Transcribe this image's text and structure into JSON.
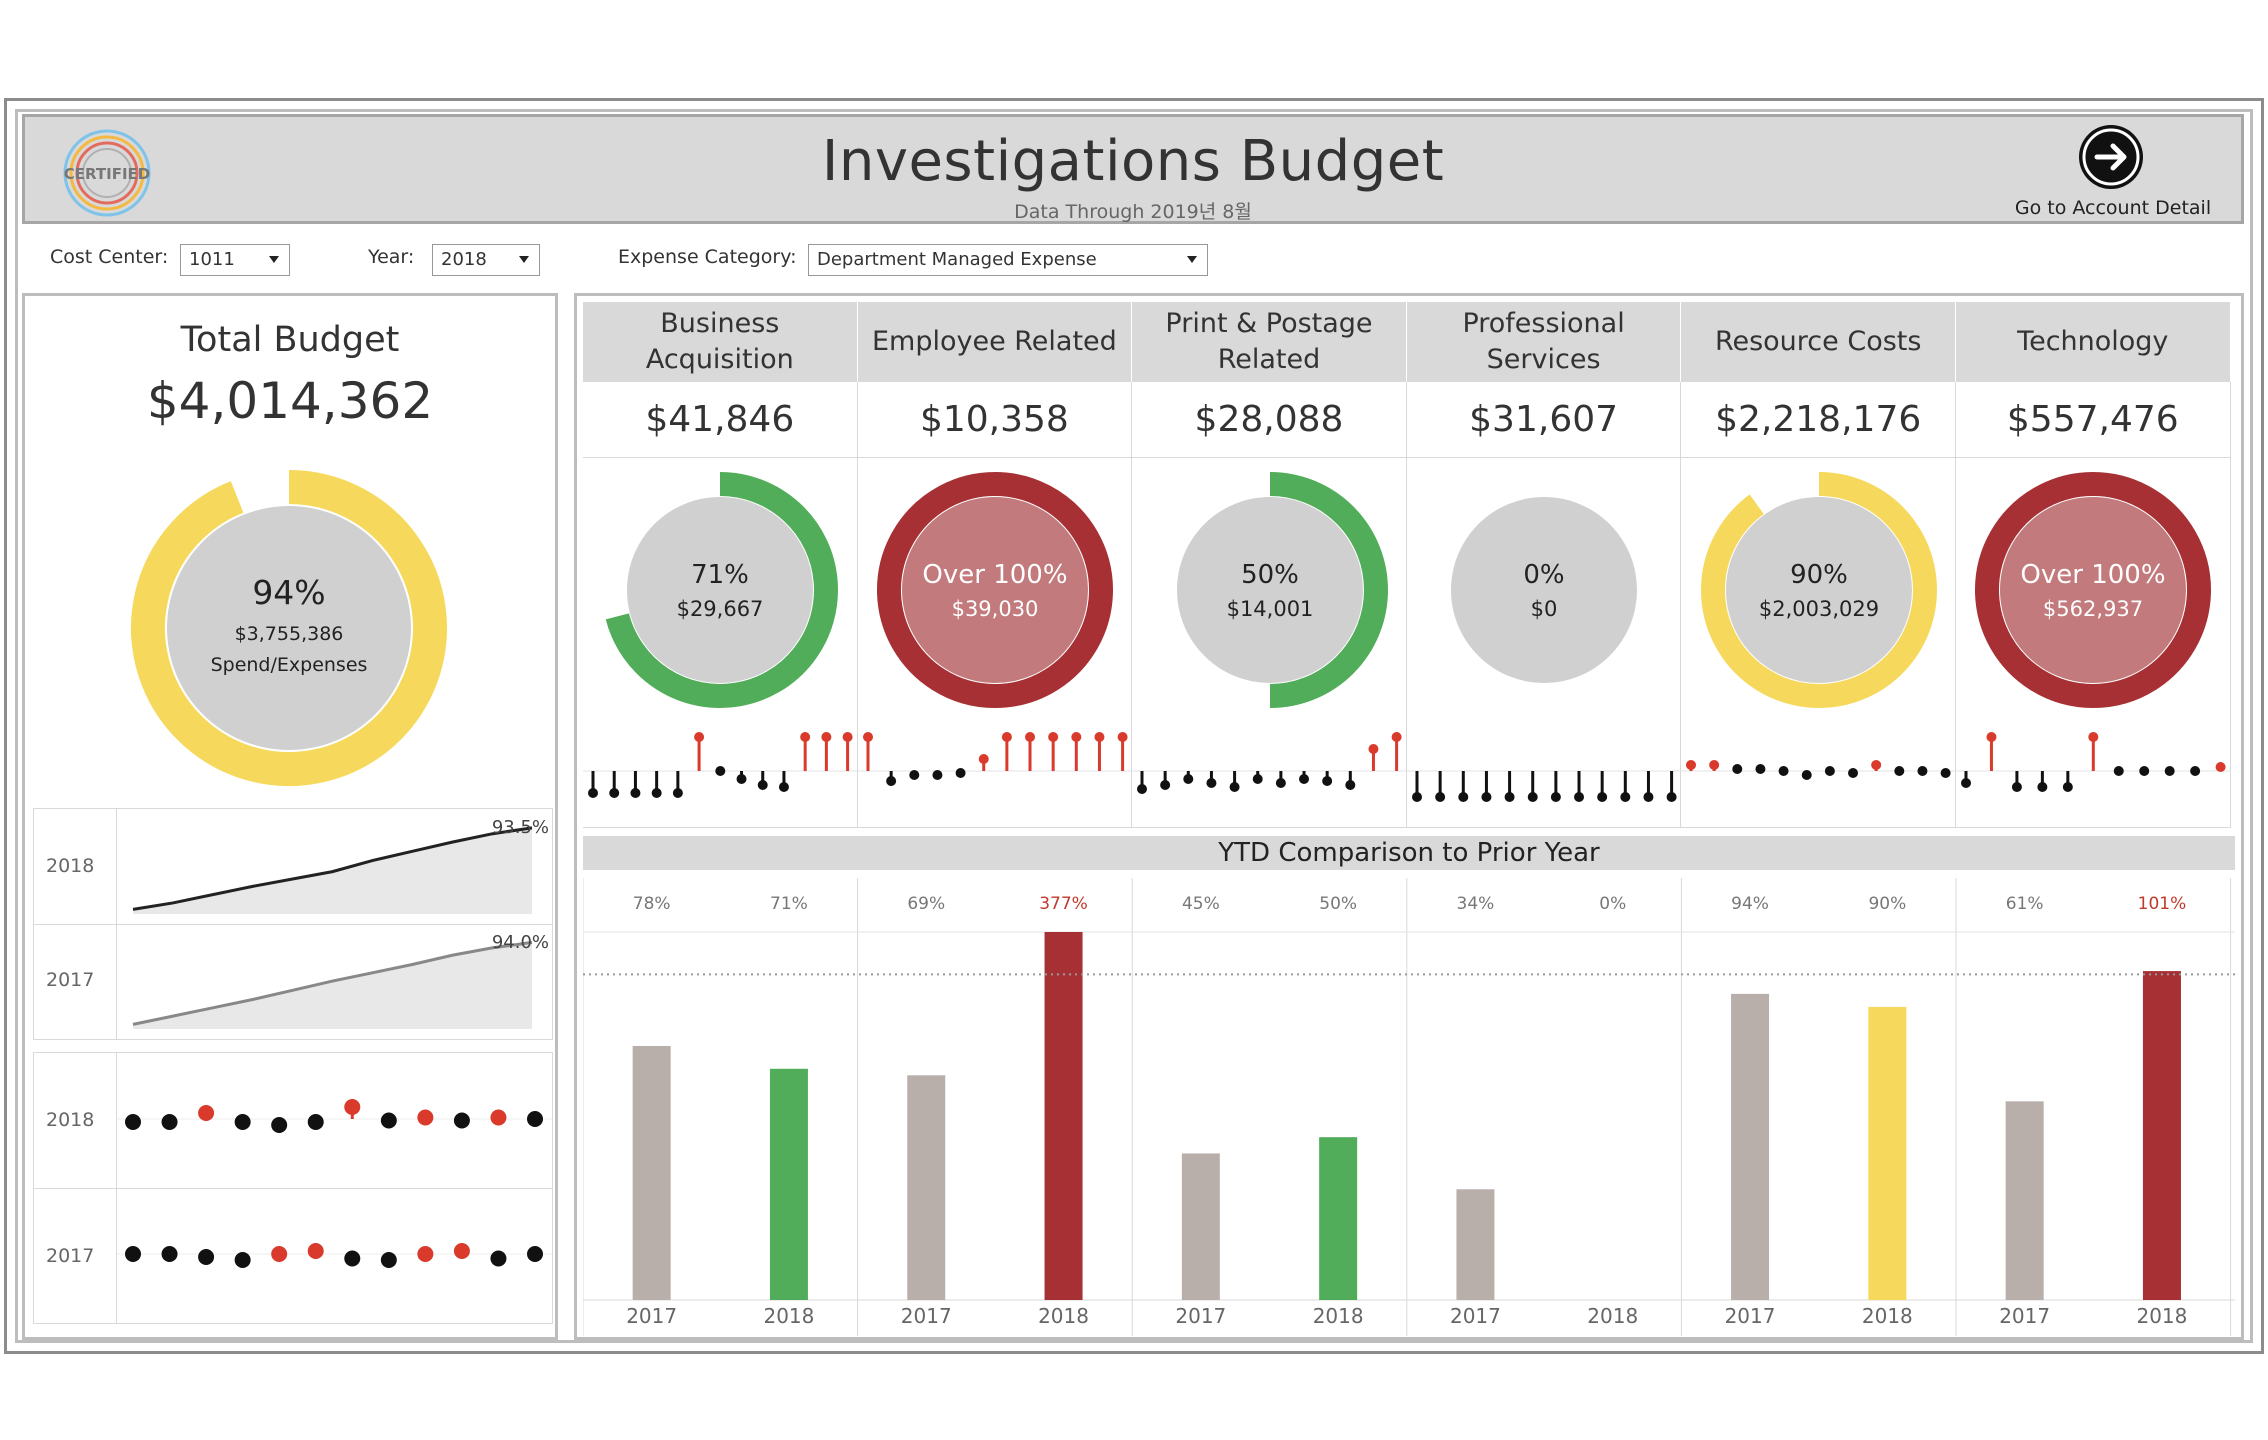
{
  "header": {
    "logo_text": "CERTIFIED",
    "title": "Investigations Budget",
    "subtitle": "Data Through 2019년 8월",
    "goto_label": "Go to Account Detail"
  },
  "filters": {
    "cost_center_label": "Cost Center:",
    "cost_center_value": "1011",
    "year_label": "Year:",
    "year_value": "2018",
    "expense_label": "Expense Category:",
    "expense_value": "Department Managed Expense"
  },
  "total": {
    "title": "Total Budget",
    "value": "$4,014,362",
    "percent": "94%",
    "spend": "$3,755,386",
    "spend_label": "Spend/Expenses",
    "fraction": 0.94,
    "color": "#f6d95c"
  },
  "cumulative": {
    "rows": [
      {
        "year": "2018",
        "end_label": "93.5%",
        "values": [
          0.05,
          0.12,
          0.21,
          0.3,
          0.38,
          0.46,
          0.58,
          0.68,
          0.78,
          0.87,
          0.935
        ]
      },
      {
        "year": "2017",
        "end_label": "94.0%",
        "values": [
          0.05,
          0.14,
          0.23,
          0.32,
          0.42,
          0.52,
          0.61,
          0.7,
          0.8,
          0.88,
          0.94
        ]
      }
    ]
  },
  "monthly_dots": {
    "rows": [
      {
        "year": "2018",
        "colors": [
          "#111111",
          "#111111",
          "#d93a2b",
          "#111111",
          "#111111",
          "#111111",
          "#d93a2b",
          "#111111",
          "#d93a2b",
          "#111111",
          "#d93a2b",
          "#111111"
        ],
        "offsets": [
          0.1,
          0.1,
          -0.2,
          0.1,
          0.2,
          0.1,
          -0.4,
          0.05,
          -0.05,
          0.05,
          -0.05,
          0.0
        ]
      },
      {
        "year": "2017",
        "colors": [
          "#111111",
          "#111111",
          "#111111",
          "#111111",
          "#d93a2b",
          "#d93a2b",
          "#111111",
          "#111111",
          "#d93a2b",
          "#d93a2b",
          "#111111",
          "#111111"
        ],
        "offsets": [
          0.0,
          0.0,
          0.1,
          0.2,
          0.0,
          -0.1,
          0.15,
          0.2,
          0.0,
          -0.1,
          0.15,
          0.0
        ]
      }
    ]
  },
  "categories": [
    {
      "name": "Business Acquisition",
      "budget": "$41,846",
      "pct_label": "71%",
      "spent": "$29,667",
      "fraction": 0.71,
      "ring_color": "#52ad5a",
      "fill_color": "#d0d0d0",
      "text_color": "#222222",
      "ytd": {
        "pct_2017": "78%",
        "pct_2018": "71%",
        "v2017": 78,
        "v2018": 71,
        "color_2018": "#52ad5a",
        "over": false
      }
    },
    {
      "name": "Employee Related",
      "budget": "$10,358",
      "pct_label": "Over 100%",
      "spent": "$39,030",
      "fraction": 1.0,
      "ring_color": "#a63033",
      "fill_color": "#c27a7c",
      "text_color": "#ffffff",
      "ytd": {
        "pct_2017": "69%",
        "pct_2018": "377%",
        "v2017": 69,
        "v2018": 377,
        "color_2018": "#a63033",
        "over": true
      }
    },
    {
      "name": "Print & Postage Related",
      "budget": "$28,088",
      "pct_label": "50%",
      "spent": "$14,001",
      "fraction": 0.5,
      "ring_color": "#52ad5a",
      "fill_color": "#d0d0d0",
      "text_color": "#222222",
      "ytd": {
        "pct_2017": "45%",
        "pct_2018": "50%",
        "v2017": 45,
        "v2018": 50,
        "color_2018": "#52ad5a",
        "over": false
      }
    },
    {
      "name": "Professional Services",
      "budget": "$31,607",
      "pct_label": "0%",
      "spent": "$0",
      "fraction": 0.0,
      "ring_color": "#d0d0d0",
      "fill_color": "#d0d0d0",
      "text_color": "#222222",
      "ytd": {
        "pct_2017": "34%",
        "pct_2018": "0%",
        "v2017": 34,
        "v2018": 0,
        "color_2018": "#52ad5a",
        "over": false
      }
    },
    {
      "name": "Resource Costs",
      "budget": "$2,218,176",
      "pct_label": "90%",
      "spent": "$2,003,029",
      "fraction": 0.9,
      "ring_color": "#f6d95c",
      "fill_color": "#d0d0d0",
      "text_color": "#222222",
      "ytd": {
        "pct_2017": "94%",
        "pct_2018": "90%",
        "v2017": 94,
        "v2018": 90,
        "color_2018": "#f6d95c",
        "over": false
      }
    },
    {
      "name": "Technology",
      "budget": "$557,476",
      "pct_label": "Over 100%",
      "spent": "$562,937",
      "fraction": 1.0,
      "ring_color": "#a63033",
      "fill_color": "#c27a7c",
      "text_color": "#ffffff",
      "ytd": {
        "pct_2017": "61%",
        "pct_2018": "101%",
        "v2017": 61,
        "v2018": 101,
        "color_2018": "#a63033",
        "over": true
      }
    }
  ],
  "lollipops": [
    {
      "colors": [
        "#111",
        "#111",
        "#111",
        "#111",
        "#111",
        "#d93a2b",
        "#111",
        "#111",
        "#111",
        "#111",
        "#d93a2b",
        "#d93a2b",
        "#d93a2b"
      ],
      "values": [
        -0.55,
        -0.55,
        -0.55,
        -0.55,
        -0.55,
        0.85,
        0.0,
        -0.2,
        -0.35,
        -0.4,
        0.85,
        0.85,
        0.85
      ]
    },
    {
      "colors": [
        "#d93a2b",
        "#111",
        "#111",
        "#111",
        "#111",
        "#d93a2b",
        "#d93a2b",
        "#d93a2b",
        "#d93a2b",
        "#d93a2b",
        "#d93a2b",
        "#d93a2b"
      ],
      "values": [
        0.85,
        -0.25,
        -0.1,
        -0.1,
        -0.05,
        0.3,
        0.85,
        0.85,
        0.85,
        0.85,
        0.85,
        0.85
      ]
    },
    {
      "colors": [
        "#111",
        "#111",
        "#111",
        "#111",
        "#111",
        "#111",
        "#111",
        "#111",
        "#111",
        "#111",
        "#d93a2b",
        "#d93a2b"
      ],
      "values": [
        -0.45,
        -0.35,
        -0.2,
        -0.3,
        -0.4,
        -0.2,
        -0.3,
        -0.2,
        -0.25,
        -0.35,
        0.55,
        0.85
      ]
    },
    {
      "colors": [
        "#111",
        "#111",
        "#111",
        "#111",
        "#111",
        "#111",
        "#111",
        "#111",
        "#111",
        "#111",
        "#111",
        "#111"
      ],
      "values": [
        -0.65,
        -0.65,
        -0.65,
        -0.65,
        -0.65,
        -0.65,
        -0.65,
        -0.65,
        -0.65,
        -0.65,
        -0.65,
        -0.65
      ]
    },
    {
      "colors": [
        "#d93a2b",
        "#d93a2b",
        "#111",
        "#111",
        "#111",
        "#111",
        "#111",
        "#111",
        "#d93a2b",
        "#111",
        "#111",
        "#111"
      ],
      "values": [
        0.15,
        0.15,
        0.05,
        0.05,
        0.0,
        -0.1,
        0.0,
        -0.05,
        0.15,
        0.0,
        0.0,
        -0.05
      ]
    },
    {
      "colors": [
        "#111",
        "#d93a2b",
        "#111",
        "#111",
        "#111",
        "#d93a2b",
        "#111",
        "#111",
        "#111",
        "#111",
        "#d93a2b"
      ],
      "values": [
        -0.3,
        0.85,
        -0.4,
        -0.4,
        -0.4,
        0.85,
        0.0,
        0.0,
        0.0,
        0.0,
        0.1
      ]
    }
  ],
  "ytd": {
    "title": "YTD Comparison to Prior Year",
    "x_labels": [
      "2017",
      "2018"
    ],
    "ref_line": 100,
    "ymax": 113,
    "color_2017": "#b8afab",
    "over_text_color": "#c0392b"
  }
}
